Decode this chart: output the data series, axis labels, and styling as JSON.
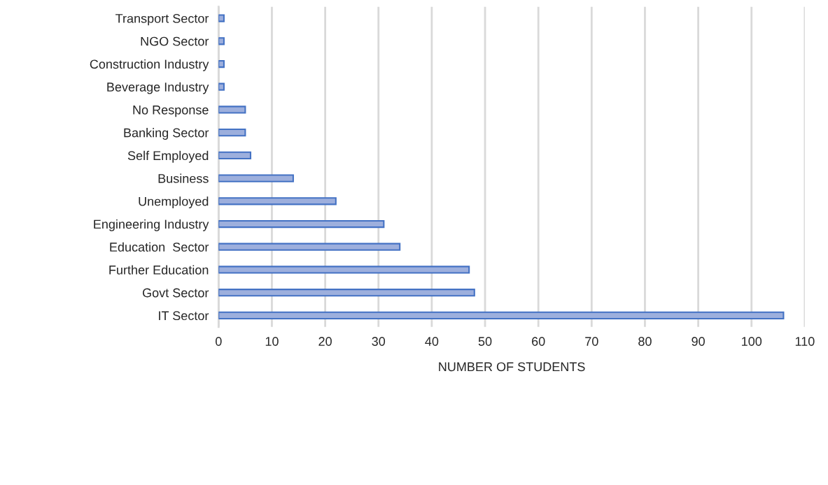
{
  "chart_data": {
    "type": "bar",
    "orientation": "horizontal",
    "xlabel": "NUMBER OF STUDENTS",
    "categories": [
      "Transport Sector",
      "NGO Sector",
      "Construction Industry",
      "Beverage Industry",
      "No Response",
      "Banking Sector",
      "Self Employed",
      "Business",
      "Unemployed",
      "Engineering Industry",
      "Education  Sector",
      "Further Education",
      "Govt Sector",
      "IT Sector"
    ],
    "series": [
      {
        "color": "#9dafdd",
        "values": [
          1,
          1,
          1,
          1,
          5,
          5,
          6,
          14,
          22,
          31,
          34,
          47,
          48,
          106
        ]
      }
    ],
    "xlim": [
      0,
      110
    ],
    "xticks": [
      0,
      10,
      20,
      30,
      40,
      50,
      60,
      70,
      80,
      90,
      100,
      110
    ],
    "grid": "x",
    "legend": false
  }
}
